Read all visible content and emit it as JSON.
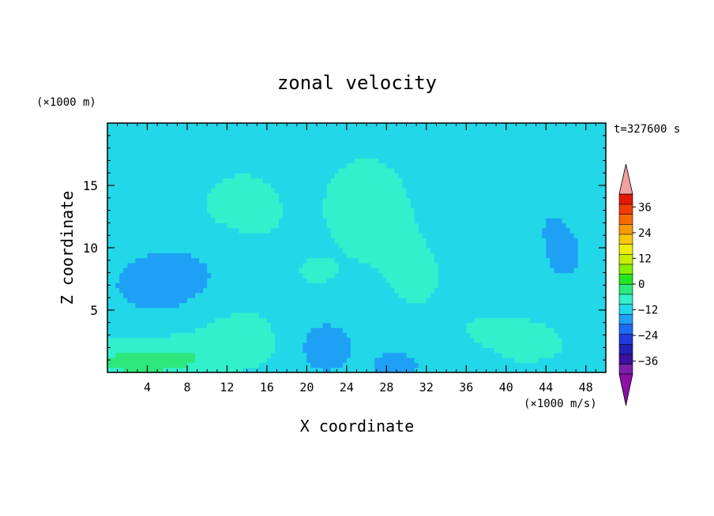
{
  "chart_data": {
    "type": "heatmap",
    "title": "zonal velocity",
    "xlabel": "X coordinate",
    "ylabel": "Z coordinate",
    "z_unit": "(×1000 m)",
    "colorbar_unit": "(×1000 m/s)",
    "time_label": "t=327600 s",
    "xlim": [
      0,
      50
    ],
    "ylim": [
      0,
      20
    ],
    "x_ticks": [
      "4",
      "8",
      "12",
      "16",
      "20",
      "24",
      "28",
      "32",
      "36",
      "40",
      "44",
      "48"
    ],
    "y_ticks": [
      "5",
      "10",
      "15"
    ],
    "colorbar": {
      "range": [
        -42,
        42
      ],
      "step": 6,
      "tick_labels": [
        "36",
        "24",
        "12",
        "0",
        "−12",
        "−24",
        "−36"
      ],
      "colors": [
        "#7a1fa6",
        "#3a10a0",
        "#2020b8",
        "#1f3ae0",
        "#1b6cf2",
        "#1ea0f5",
        "#22d8e8",
        "#32f0cc",
        "#2de87c",
        "#22e622",
        "#84ee00",
        "#c6f000",
        "#ecf000",
        "#f7c800",
        "#f79a00",
        "#f56a00",
        "#ee3c00",
        "#e21800"
      ],
      "over_color": "#f4a0a0",
      "under_color": "#8a10a8"
    },
    "field": {
      "base": -2,
      "blobs": [
        {
          "x": 26,
          "z": 13.5,
          "sx": 3.8,
          "sz": 3.6,
          "a": 5.5
        },
        {
          "x": 13.5,
          "z": 12.5,
          "sx": 6,
          "sz": 5,
          "a": 3.2
        },
        {
          "x": 31,
          "z": 8,
          "sx": 5,
          "sz": 5,
          "a": 2.5
        },
        {
          "x": 21,
          "z": 8,
          "sx": 3,
          "sz": 1.8,
          "a": 2.2
        },
        {
          "x": 5,
          "z": 7,
          "sx": 6,
          "sz": 3,
          "a": -6
        },
        {
          "x": 10,
          "z": 9,
          "sx": 6,
          "sz": 2.5,
          "a": -3
        },
        {
          "x": 22,
          "z": 2,
          "sx": 3.5,
          "sz": 2.5,
          "a": -7
        },
        {
          "x": 29,
          "z": 0.5,
          "sx": 2.2,
          "sz": 1.2,
          "a": -10
        },
        {
          "x": 6,
          "z": 1.5,
          "sx": 8,
          "sz": 1.5,
          "a": 7
        },
        {
          "x": 13,
          "z": 3,
          "sx": 4,
          "sz": 2,
          "a": 5
        },
        {
          "x": 3,
          "z": 0.7,
          "sx": 5,
          "sz": 0.8,
          "a": 9
        },
        {
          "x": 43,
          "z": 2.5,
          "sx": 4,
          "sz": 2,
          "a": 5
        },
        {
          "x": 39,
          "z": 3.5,
          "sx": 4,
          "sz": 1.5,
          "a": 2.5
        },
        {
          "x": 46,
          "z": 9,
          "sx": 5,
          "sz": 6,
          "a": -4
        },
        {
          "x": 41,
          "z": 15,
          "sx": 6,
          "sz": 5,
          "a": -2.5
        },
        {
          "x": 1,
          "z": 18.5,
          "sx": 8,
          "sz": 2,
          "a": -2.5
        },
        {
          "x": 47,
          "z": 0.4,
          "sx": 3,
          "sz": 0.8,
          "a": -4
        }
      ]
    }
  }
}
